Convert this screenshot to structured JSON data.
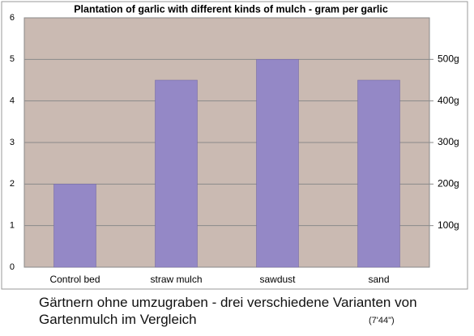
{
  "chart_data": {
    "type": "bar",
    "title": "Plantation of garlic with different kinds of mulch - gram per garlic",
    "categories": [
      "Control bed",
      "straw mulch",
      "sawdust",
      "sand"
    ],
    "values": [
      2,
      4.5,
      5,
      4.5
    ],
    "color": "#9488c6",
    "ylim": [
      0,
      6
    ],
    "yticks": [
      0,
      1,
      2,
      3,
      4,
      5,
      6
    ],
    "y2lim": [
      0,
      600
    ],
    "y2ticks": [
      {
        "value": 100,
        "label": "100g"
      },
      {
        "value": 200,
        "label": "200g"
      },
      {
        "value": 300,
        "label": "300g"
      },
      {
        "value": 400,
        "label": "400g"
      },
      {
        "value": 500,
        "label": "500g"
      }
    ],
    "grid": true
  },
  "caption": "Gärtnern ohne umzugraben - drei verschiedene Varianten von Gartenmulch im Vergleich",
  "duration": "(7'44\")"
}
